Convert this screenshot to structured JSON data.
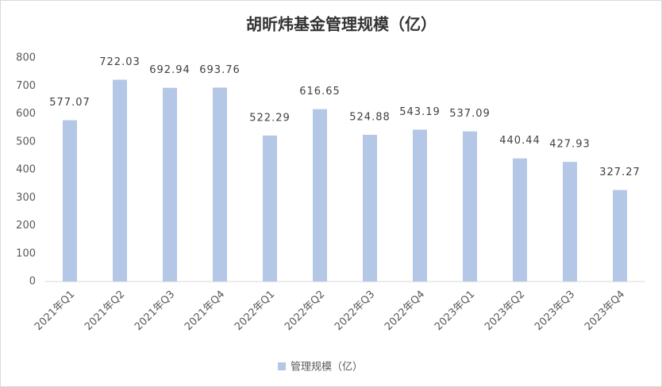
{
  "chart_data": {
    "type": "bar",
    "title": "胡昕炜基金管理规模（亿）",
    "categories": [
      "2021年Q1",
      "2021年Q2",
      "2021年Q3",
      "2021年Q4",
      "2022年Q1",
      "2022年Q2",
      "2022年Q3",
      "2022年Q4",
      "2023年Q1",
      "2023年Q2",
      "2023年Q3",
      "2023年Q4"
    ],
    "series": [
      {
        "name": "管理规模（亿）",
        "color": "#b4c7e7",
        "values": [
          577.07,
          722.03,
          692.94,
          693.76,
          522.29,
          616.65,
          524.88,
          543.19,
          537.09,
          440.44,
          427.93,
          327.27
        ]
      }
    ],
    "ylim": [
      0,
      800
    ],
    "yticks": [
      0,
      100,
      200,
      300,
      400,
      500,
      600,
      700,
      800
    ],
    "grid": false,
    "legend": "bottom"
  }
}
